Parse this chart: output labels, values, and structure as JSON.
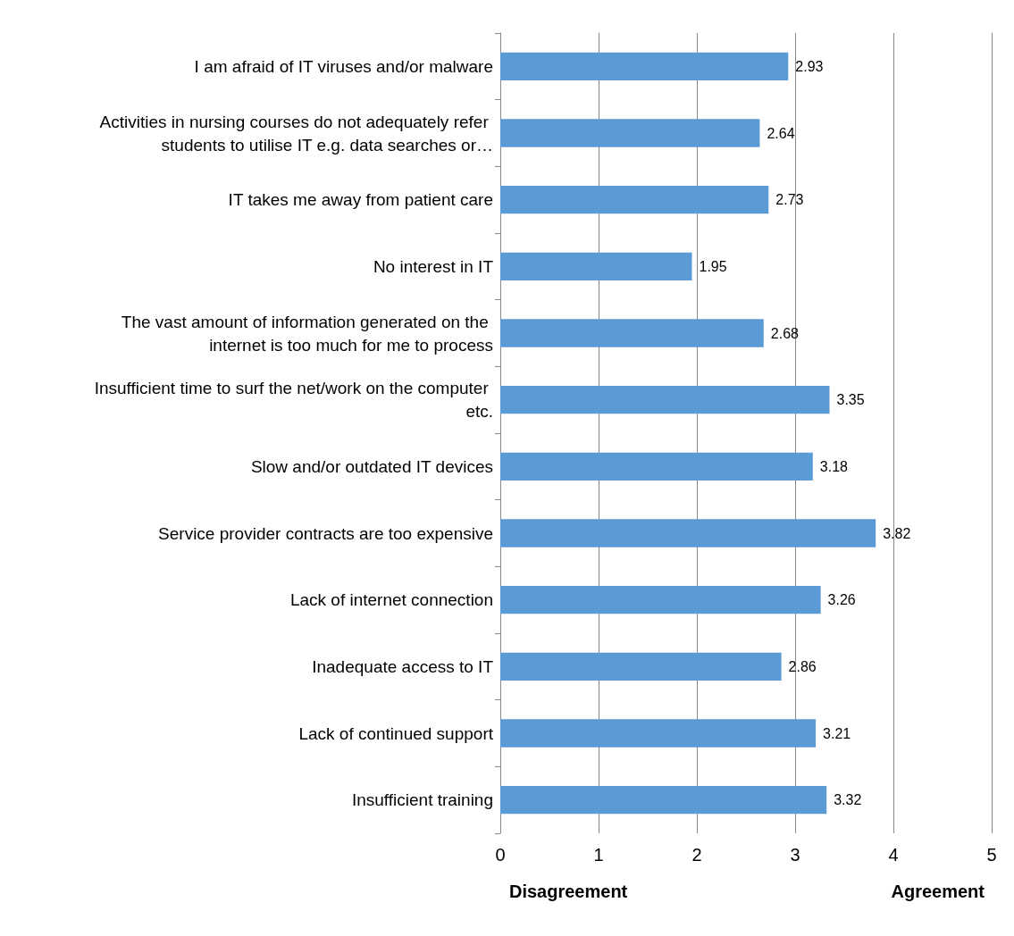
{
  "chart_data": {
    "type": "bar",
    "orientation": "horizontal",
    "categories": [
      "I am afraid of IT viruses and/or malware",
      "Activities in nursing courses do not adequately refer students to utilise IT e.g. data searches or…",
      "IT takes me away from patient care",
      "No interest in IT",
      "The vast amount of information generated on the internet is too much for me to process",
      "Insufficient time to surf the net/work on the computer etc.",
      "Slow and/or outdated IT devices",
      "Service provider contracts are too expensive",
      "Lack of internet connection",
      "Inadequate access to IT",
      "Lack of continued support",
      "Insufficient training"
    ],
    "values": [
      2.93,
      2.64,
      2.73,
      1.95,
      2.68,
      3.35,
      3.18,
      3.82,
      3.26,
      2.86,
      3.21,
      3.32
    ],
    "color": "#5b9bd5",
    "xlim": [
      0,
      5
    ],
    "xticks": [
      0,
      1,
      2,
      3,
      4,
      5
    ],
    "grid": "x",
    "data_labels": true,
    "annotations": [
      "Disagreement",
      "Agreement"
    ]
  }
}
